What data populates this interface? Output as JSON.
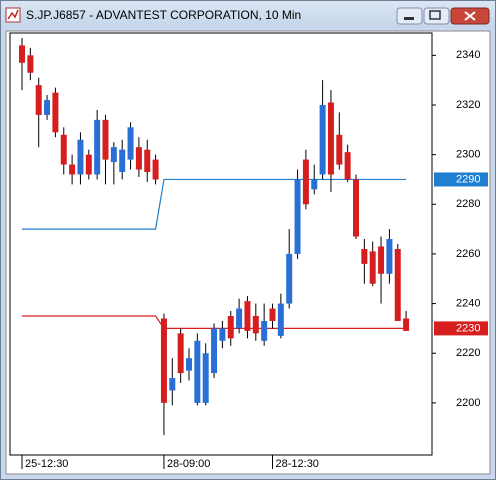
{
  "chart_data": {
    "type": "candlestick",
    "title": "S.JP.J6857 - ADVANTEST CORPORATION, 10 Min",
    "categories": [
      "25-12:30",
      null,
      null,
      null,
      null,
      null,
      null,
      null,
      null,
      null,
      null,
      null,
      null,
      null,
      null,
      null,
      null,
      "28-09:00",
      null,
      null,
      null,
      null,
      null,
      null,
      null,
      null,
      null,
      null,
      null,
      null,
      "28-12:30",
      null,
      null,
      null,
      null,
      null,
      null,
      null,
      null,
      null,
      null,
      null,
      null,
      null,
      null,
      null,
      null
    ],
    "open": [
      2344,
      2340,
      2328,
      2316,
      2325,
      2308,
      2296,
      2292,
      2300,
      2292,
      2314,
      2297,
      2293,
      2298,
      2303,
      2302,
      2298,
      2234,
      2205,
      2228,
      2213,
      2200,
      2200,
      2212,
      2225,
      2235,
      2230,
      2241,
      2235,
      2225,
      2238,
      2227,
      2240,
      2260,
      2298,
      2286,
      2292,
      2321,
      2308,
      2301,
      2290,
      2262,
      2261,
      2263,
      2252,
      2262,
      2234
    ],
    "high": [
      2347,
      2343,
      2331,
      2324,
      2327,
      2311,
      2300,
      2309,
      2302,
      2318,
      2316,
      2305,
      2306,
      2313,
      2307,
      2306,
      2300,
      2236,
      2218,
      2230,
      2222,
      2228,
      2224,
      2232,
      2233,
      2237,
      2242,
      2243,
      2240,
      2240,
      2240,
      2244,
      2270,
      2294,
      2302,
      2296,
      2330,
      2326,
      2317,
      2304,
      2292,
      2266,
      2265,
      2267,
      2270,
      2264,
      2237
    ],
    "low": [
      2326,
      2330,
      2303,
      2314,
      2307,
      2292,
      2288,
      2288,
      2290,
      2290,
      2288,
      2288,
      2290,
      2294,
      2291,
      2289,
      2288,
      2187,
      2199,
      2208,
      2209,
      2199,
      2199,
      2210,
      2222,
      2223,
      2228,
      2226,
      2225,
      2223,
      2230,
      2226,
      2238,
      2258,
      2278,
      2284,
      2290,
      2285,
      2294,
      2289,
      2266,
      2248,
      2247,
      2240,
      2248,
      2233,
      2229
    ],
    "close": [
      2337,
      2333,
      2316,
      2322,
      2309,
      2296,
      2292,
      2306,
      2292,
      2314,
      2298,
      2303,
      2302,
      2311,
      2294,
      2293,
      2290,
      2200,
      2210,
      2212,
      2218,
      2225,
      2220,
      2230,
      2230,
      2226,
      2238,
      2229,
      2228,
      2233,
      2233,
      2240,
      2260,
      2290,
      2280,
      2290,
      2320,
      2292,
      2296,
      2290,
      2267,
      2256,
      2248,
      2252,
      2266,
      2233,
      2229
    ],
    "up_color": "#2a6fd6",
    "down_color": "#d61e1e",
    "lines": [
      {
        "color": "#1f7fd0",
        "values": [
          2270,
          2270,
          2270,
          2270,
          2270,
          2270,
          2270,
          2270,
          2270,
          2270,
          2270,
          2270,
          2270,
          2270,
          2270,
          2270,
          2270,
          2290,
          2290,
          2290,
          2290,
          2290,
          2290,
          2290,
          2290,
          2290,
          2290,
          2290,
          2290,
          2290,
          2290,
          2290,
          2290,
          2290,
          2290,
          2290,
          2290,
          2290,
          2290,
          2290,
          2290,
          2290,
          2290,
          2290,
          2290,
          2290,
          2290
        ]
      },
      {
        "color": "#d61e1e",
        "values": [
          2235,
          2235,
          2235,
          2235,
          2235,
          2235,
          2235,
          2235,
          2235,
          2235,
          2235,
          2235,
          2235,
          2235,
          2235,
          2235,
          2235,
          2230,
          2230,
          2230,
          2230,
          2230,
          2230,
          2230,
          2230,
          2230,
          2230,
          2230,
          2230,
          2230,
          2230,
          2230,
          2230,
          2230,
          2230,
          2230,
          2230,
          2230,
          2230,
          2230,
          2230,
          2230,
          2230,
          2230,
          2230,
          2230,
          2230
        ]
      }
    ],
    "ylim": [
      2179,
      2349
    ],
    "yticks": [
      2200,
      2220,
      2240,
      2260,
      2280,
      2300,
      2320,
      2340
    ]
  }
}
